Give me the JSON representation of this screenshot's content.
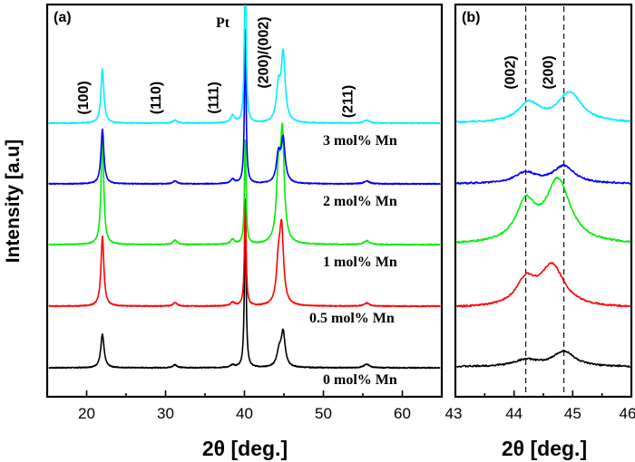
{
  "chart_data": [
    {
      "panel": "(a)",
      "type": "line",
      "xlabel": "2θ [deg.]",
      "ylabel": "Intensity [a.u]",
      "xlim": [
        15,
        65
      ],
      "xticks": [
        20,
        30,
        40,
        50,
        60
      ],
      "yaxis": "stacked traces, arbitrary units (baseline offset 0–5 per trace, intensity 0–3)",
      "peak_labels": [
        {
          "text": "(100)",
          "x": 22.0
        },
        {
          "text": "(110)",
          "x": 31.2
        },
        {
          "text": "(111)",
          "x": 38.5
        },
        {
          "text": "Pt",
          "x": 40.0
        },
        {
          "text": "(200)/(002)",
          "x": 44.8
        },
        {
          "text": "(211)",
          "x": 55.5
        }
      ],
      "series": [
        {
          "name": "0 mol% Mn",
          "color": "#000000",
          "offset": 0.0,
          "peaks": [
            [
              22.0,
              0.55,
              0.25
            ],
            [
              31.2,
              0.05,
              0.3
            ],
            [
              38.5,
              0.04,
              0.3
            ],
            [
              40.1,
              2.8,
              0.12
            ],
            [
              44.4,
              0.25,
              0.35
            ],
            [
              44.9,
              0.55,
              0.3
            ],
            [
              55.5,
              0.06,
              0.4
            ]
          ]
        },
        {
          "name": "0.5 mol% Mn",
          "color": "#ff0000",
          "offset": 1.0,
          "peaks": [
            [
              22.0,
              1.15,
              0.22
            ],
            [
              31.2,
              0.06,
              0.3
            ],
            [
              38.5,
              0.06,
              0.3
            ],
            [
              40.1,
              1.8,
              0.12
            ],
            [
              44.3,
              0.6,
              0.3
            ],
            [
              44.7,
              1.2,
              0.3
            ],
            [
              55.5,
              0.05,
              0.4
            ]
          ]
        },
        {
          "name": "1 mol% Mn",
          "color": "#00ee00",
          "offset": 2.0,
          "peaks": [
            [
              22.0,
              1.8,
              0.2
            ],
            [
              31.2,
              0.07,
              0.3
            ],
            [
              38.5,
              0.08,
              0.3
            ],
            [
              40.1,
              1.75,
              0.12
            ],
            [
              44.3,
              1.1,
              0.3
            ],
            [
              44.8,
              1.7,
              0.28
            ],
            [
              55.5,
              0.06,
              0.4
            ]
          ]
        },
        {
          "name": "2 mol% Mn",
          "color": "#0000ff",
          "offset": 3.0,
          "peaks": [
            [
              22.0,
              0.9,
              0.22
            ],
            [
              31.2,
              0.05,
              0.3
            ],
            [
              38.5,
              0.07,
              0.3
            ],
            [
              40.1,
              2.6,
              0.12
            ],
            [
              44.3,
              0.45,
              0.3
            ],
            [
              44.9,
              0.7,
              0.3
            ],
            [
              55.5,
              0.05,
              0.4
            ]
          ]
        },
        {
          "name": "3 mol% Mn",
          "color": "#00eeff",
          "offset": 4.0,
          "peaks": [
            [
              22.0,
              0.9,
              0.22
            ],
            [
              31.2,
              0.05,
              0.3
            ],
            [
              38.5,
              0.12,
              0.3
            ],
            [
              40.1,
              3.0,
              0.12
            ],
            [
              44.3,
              0.55,
              0.3
            ],
            [
              44.9,
              1.1,
              0.3
            ],
            [
              55.5,
              0.05,
              0.4
            ]
          ]
        }
      ]
    },
    {
      "panel": "(b)",
      "type": "line",
      "xlabel": "2θ [deg.]",
      "xlim": [
        43,
        46
      ],
      "xticks": [
        43,
        44,
        45,
        46
      ],
      "reference_lines": [
        {
          "label": "(002)",
          "x": 44.2
        },
        {
          "label": "(200)",
          "x": 44.85
        }
      ],
      "series": [
        {
          "name": "0 mol% Mn",
          "color": "#000000",
          "offset": 0.0,
          "peaks": [
            [
              44.2,
              0.12,
              0.25
            ],
            [
              44.85,
              0.28,
              0.22
            ]
          ]
        },
        {
          "name": "0.5 mol% Mn",
          "color": "#ff0000",
          "offset": 1.0,
          "peaks": [
            [
              44.2,
              0.45,
              0.2
            ],
            [
              44.65,
              0.75,
              0.25
            ]
          ]
        },
        {
          "name": "1 mol% Mn",
          "color": "#00ee00",
          "offset": 2.0,
          "peaks": [
            [
              44.2,
              0.7,
              0.2
            ],
            [
              44.75,
              1.15,
              0.25
            ]
          ]
        },
        {
          "name": "2 mol% Mn",
          "color": "#0000ff",
          "offset": 3.0,
          "peaks": [
            [
              44.2,
              0.2,
              0.22
            ],
            [
              44.85,
              0.32,
              0.22
            ]
          ]
        },
        {
          "name": "3 mol% Mn",
          "color": "#00eeff",
          "offset": 4.0,
          "peaks": [
            [
              44.25,
              0.35,
              0.22
            ],
            [
              44.95,
              0.55,
              0.25
            ]
          ]
        }
      ]
    }
  ]
}
